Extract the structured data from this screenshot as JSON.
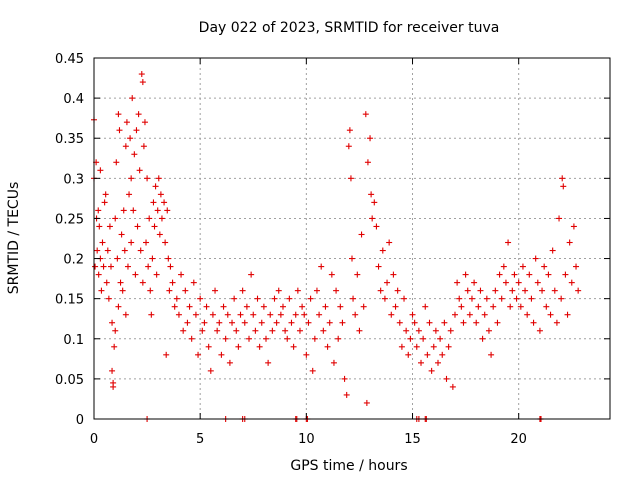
{
  "chart_data": {
    "type": "scatter",
    "title": "Day 022 of 2023, SRMTID for receiver tuva",
    "xlabel": "GPS time / hours",
    "ylabel": "SRMTID / TECUs",
    "xlim": [
      0,
      24.3
    ],
    "ylim": [
      0,
      0.45
    ],
    "x_ticks": [
      0,
      5,
      10,
      15,
      20
    ],
    "x_tick_labels": [
      "0",
      "5",
      "10",
      "15",
      "20"
    ],
    "y_ticks": [
      0,
      0.05,
      0.1,
      0.15,
      0.2,
      0.25,
      0.3,
      0.35,
      0.4,
      0.45
    ],
    "y_tick_labels": [
      "0",
      "0.05",
      "0.1",
      "0.15",
      "0.2",
      "0.25",
      "0.3",
      "0.35",
      "0.4",
      "0.45"
    ],
    "grid": true,
    "marker": "plus",
    "color": "#e00000",
    "series": [
      {
        "name": "SRMTID",
        "points": [
          [
            0.0,
            0.373
          ],
          [
            0.0,
            0.3
          ],
          [
            0.05,
            0.19
          ],
          [
            0.1,
            0.32
          ],
          [
            0.12,
            0.25
          ],
          [
            0.15,
            0.21
          ],
          [
            0.2,
            0.26
          ],
          [
            0.22,
            0.18
          ],
          [
            0.25,
            0.24
          ],
          [
            0.3,
            0.2
          ],
          [
            0.3,
            0.31
          ],
          [
            0.35,
            0.16
          ],
          [
            0.4,
            0.22
          ],
          [
            0.45,
            0.19
          ],
          [
            0.5,
            0.27
          ],
          [
            0.55,
            0.28
          ],
          [
            0.6,
            0.17
          ],
          [
            0.65,
            0.21
          ],
          [
            0.7,
            0.15
          ],
          [
            0.75,
            0.24
          ],
          [
            0.8,
            0.19
          ],
          [
            0.85,
            0.12
          ],
          [
            0.85,
            0.06
          ],
          [
            0.9,
            0.04
          ],
          [
            0.9,
            0.045
          ],
          [
            0.95,
            0.09
          ],
          [
            1.0,
            0.11
          ],
          [
            1.0,
            0.25
          ],
          [
            1.05,
            0.32
          ],
          [
            1.1,
            0.2
          ],
          [
            1.15,
            0.14
          ],
          [
            1.15,
            0.38
          ],
          [
            1.2,
            0.36
          ],
          [
            1.25,
            0.17
          ],
          [
            1.3,
            0.23
          ],
          [
            1.35,
            0.16
          ],
          [
            1.4,
            0.26
          ],
          [
            1.45,
            0.21
          ],
          [
            1.5,
            0.34
          ],
          [
            1.5,
            0.13
          ],
          [
            1.55,
            0.37
          ],
          [
            1.6,
            0.19
          ],
          [
            1.65,
            0.28
          ],
          [
            1.7,
            0.35
          ],
          [
            1.75,
            0.3
          ],
          [
            1.75,
            0.22
          ],
          [
            1.8,
            0.4
          ],
          [
            1.85,
            0.26
          ],
          [
            1.9,
            0.33
          ],
          [
            1.95,
            0.18
          ],
          [
            2.0,
            0.36
          ],
          [
            2.05,
            0.24
          ],
          [
            2.1,
            0.38
          ],
          [
            2.15,
            0.31
          ],
          [
            2.2,
            0.21
          ],
          [
            2.25,
            0.43
          ],
          [
            2.3,
            0.42
          ],
          [
            2.3,
            0.17
          ],
          [
            2.35,
            0.34
          ],
          [
            2.4,
            0.37
          ],
          [
            2.45,
            0.22
          ],
          [
            2.5,
            0.3
          ],
          [
            2.55,
            0.19
          ],
          [
            2.6,
            0.25
          ],
          [
            2.65,
            0.16
          ],
          [
            2.7,
            0.13
          ],
          [
            2.75,
            0.2
          ],
          [
            2.8,
            0.27
          ],
          [
            2.85,
            0.24
          ],
          [
            2.9,
            0.29
          ],
          [
            2.95,
            0.18
          ],
          [
            3.0,
            0.26
          ],
          [
            3.05,
            0.3
          ],
          [
            3.1,
            0.23
          ],
          [
            3.15,
            0.28
          ],
          [
            3.2,
            0.25
          ],
          [
            3.3,
            0.27
          ],
          [
            3.35,
            0.22
          ],
          [
            3.4,
            0.08
          ],
          [
            3.45,
            0.26
          ],
          [
            3.5,
            0.2
          ],
          [
            3.55,
            0.16
          ],
          [
            3.6,
            0.19
          ],
          [
            3.7,
            0.17
          ],
          [
            3.8,
            0.14
          ],
          [
            3.9,
            0.15
          ],
          [
            4.0,
            0.13
          ],
          [
            4.1,
            0.18
          ],
          [
            4.2,
            0.11
          ],
          [
            4.3,
            0.16
          ],
          [
            4.4,
            0.12
          ],
          [
            4.5,
            0.14
          ],
          [
            4.6,
            0.1
          ],
          [
            4.7,
            0.17
          ],
          [
            4.8,
            0.13
          ],
          [
            4.9,
            0.08
          ],
          [
            5.0,
            0.15
          ],
          [
            5.1,
            0.11
          ],
          [
            5.2,
            0.12
          ],
          [
            5.3,
            0.14
          ],
          [
            5.4,
            0.09
          ],
          [
            5.5,
            0.06
          ],
          [
            5.6,
            0.13
          ],
          [
            5.7,
            0.16
          ],
          [
            5.8,
            0.11
          ],
          [
            5.9,
            0.12
          ],
          [
            6.0,
            0.08
          ],
          [
            6.1,
            0.14
          ],
          [
            6.2,
            0.1
          ],
          [
            6.3,
            0.13
          ],
          [
            6.4,
            0.07
          ],
          [
            6.5,
            0.12
          ],
          [
            6.6,
            0.15
          ],
          [
            6.7,
            0.11
          ],
          [
            6.8,
            0.09
          ],
          [
            6.9,
            0.13
          ],
          [
            7.0,
            0.16
          ],
          [
            7.1,
            0.12
          ],
          [
            7.2,
            0.14
          ],
          [
            7.3,
            0.1
          ],
          [
            7.4,
            0.18
          ],
          [
            7.5,
            0.13
          ],
          [
            7.6,
            0.11
          ],
          [
            7.7,
            0.15
          ],
          [
            7.8,
            0.09
          ],
          [
            7.9,
            0.12
          ],
          [
            8.0,
            0.14
          ],
          [
            8.1,
            0.1
          ],
          [
            8.2,
            0.07
          ],
          [
            8.3,
            0.13
          ],
          [
            8.4,
            0.11
          ],
          [
            8.5,
            0.15
          ],
          [
            8.6,
            0.12
          ],
          [
            8.7,
            0.16
          ],
          [
            8.8,
            0.13
          ],
          [
            8.9,
            0.14
          ],
          [
            9.0,
            0.11
          ],
          [
            9.1,
            0.1
          ],
          [
            9.2,
            0.15
          ],
          [
            9.3,
            0.12
          ],
          [
            9.4,
            0.09
          ],
          [
            9.5,
            0.13
          ],
          [
            9.6,
            0.16
          ],
          [
            9.7,
            0.11
          ],
          [
            9.8,
            0.14
          ],
          [
            9.9,
            0.13
          ],
          [
            10.0,
            0.08
          ],
          [
            10.1,
            0.12
          ],
          [
            10.2,
            0.15
          ],
          [
            10.3,
            0.06
          ],
          [
            10.4,
            0.1
          ],
          [
            10.5,
            0.16
          ],
          [
            10.6,
            0.13
          ],
          [
            10.7,
            0.19
          ],
          [
            10.8,
            0.11
          ],
          [
            10.9,
            0.14
          ],
          [
            11.0,
            0.09
          ],
          [
            11.1,
            0.12
          ],
          [
            11.2,
            0.18
          ],
          [
            11.3,
            0.07
          ],
          [
            11.4,
            0.16
          ],
          [
            11.5,
            0.1
          ],
          [
            11.6,
            0.14
          ],
          [
            11.7,
            0.12
          ],
          [
            11.8,
            0.05
          ],
          [
            11.9,
            0.03
          ],
          [
            12.0,
            0.34
          ],
          [
            12.05,
            0.36
          ],
          [
            12.1,
            0.3
          ],
          [
            12.15,
            0.2
          ],
          [
            12.2,
            0.15
          ],
          [
            12.3,
            0.13
          ],
          [
            12.4,
            0.18
          ],
          [
            12.5,
            0.11
          ],
          [
            12.6,
            0.23
          ],
          [
            12.7,
            0.14
          ],
          [
            12.8,
            0.38
          ],
          [
            12.85,
            0.02
          ],
          [
            12.9,
            0.32
          ],
          [
            13.0,
            0.35
          ],
          [
            13.05,
            0.28
          ],
          [
            13.1,
            0.25
          ],
          [
            13.2,
            0.27
          ],
          [
            13.3,
            0.24
          ],
          [
            13.4,
            0.19
          ],
          [
            13.5,
            0.16
          ],
          [
            13.6,
            0.21
          ],
          [
            13.7,
            0.15
          ],
          [
            13.8,
            0.17
          ],
          [
            13.9,
            0.22
          ],
          [
            14.0,
            0.13
          ],
          [
            14.1,
            0.18
          ],
          [
            14.2,
            0.14
          ],
          [
            14.3,
            0.16
          ],
          [
            14.4,
            0.12
          ],
          [
            14.5,
            0.09
          ],
          [
            14.6,
            0.15
          ],
          [
            14.7,
            0.11
          ],
          [
            14.8,
            0.08
          ],
          [
            14.9,
            0.1
          ],
          [
            15.0,
            0.13
          ],
          [
            15.1,
            0.12
          ],
          [
            15.2,
            0.09
          ],
          [
            15.3,
            0.11
          ],
          [
            15.4,
            0.07
          ],
          [
            15.5,
            0.1
          ],
          [
            15.6,
            0.14
          ],
          [
            15.7,
            0.08
          ],
          [
            15.8,
            0.12
          ],
          [
            15.9,
            0.06
          ],
          [
            16.0,
            0.09
          ],
          [
            16.1,
            0.11
          ],
          [
            16.2,
            0.07
          ],
          [
            16.3,
            0.1
          ],
          [
            16.4,
            0.08
          ],
          [
            16.5,
            0.12
          ],
          [
            16.6,
            0.05
          ],
          [
            16.7,
            0.09
          ],
          [
            16.8,
            0.11
          ],
          [
            16.9,
            0.04
          ],
          [
            17.0,
            0.13
          ],
          [
            17.1,
            0.17
          ],
          [
            17.2,
            0.15
          ],
          [
            17.3,
            0.14
          ],
          [
            17.4,
            0.12
          ],
          [
            17.5,
            0.18
          ],
          [
            17.6,
            0.16
          ],
          [
            17.7,
            0.13
          ],
          [
            17.8,
            0.15
          ],
          [
            17.9,
            0.17
          ],
          [
            18.0,
            0.12
          ],
          [
            18.1,
            0.14
          ],
          [
            18.2,
            0.16
          ],
          [
            18.3,
            0.1
          ],
          [
            18.4,
            0.13
          ],
          [
            18.5,
            0.15
          ],
          [
            18.6,
            0.11
          ],
          [
            18.7,
            0.08
          ],
          [
            18.8,
            0.14
          ],
          [
            18.9,
            0.16
          ],
          [
            19.0,
            0.12
          ],
          [
            19.1,
            0.18
          ],
          [
            19.2,
            0.15
          ],
          [
            19.3,
            0.19
          ],
          [
            19.4,
            0.17
          ],
          [
            19.5,
            0.22
          ],
          [
            19.6,
            0.14
          ],
          [
            19.7,
            0.16
          ],
          [
            19.8,
            0.18
          ],
          [
            19.9,
            0.15
          ],
          [
            20.0,
            0.17
          ],
          [
            20.1,
            0.14
          ],
          [
            20.2,
            0.19
          ],
          [
            20.3,
            0.16
          ],
          [
            20.4,
            0.13
          ],
          [
            20.5,
            0.18
          ],
          [
            20.6,
            0.15
          ],
          [
            20.7,
            0.12
          ],
          [
            20.8,
            0.2
          ],
          [
            20.9,
            0.17
          ],
          [
            21.0,
            0.11
          ],
          [
            21.1,
            0.16
          ],
          [
            21.2,
            0.19
          ],
          [
            21.3,
            0.14
          ],
          [
            21.4,
            0.18
          ],
          [
            21.5,
            0.13
          ],
          [
            21.6,
            0.21
          ],
          [
            21.7,
            0.16
          ],
          [
            21.8,
            0.12
          ],
          [
            21.9,
            0.25
          ],
          [
            22.0,
            0.15
          ],
          [
            22.05,
            0.3
          ],
          [
            22.1,
            0.29
          ],
          [
            22.2,
            0.18
          ],
          [
            22.3,
            0.13
          ],
          [
            22.4,
            0.22
          ],
          [
            22.5,
            0.17
          ],
          [
            22.6,
            0.24
          ],
          [
            22.7,
            0.19
          ],
          [
            22.8,
            0.16
          ]
        ],
        "zero_points": [
          2.5,
          6.2,
          7.0,
          7.1,
          9.5,
          9.55,
          10.0,
          10.05,
          15.2,
          15.3,
          15.6,
          15.65,
          21.0,
          21.05
        ]
      }
    ]
  }
}
